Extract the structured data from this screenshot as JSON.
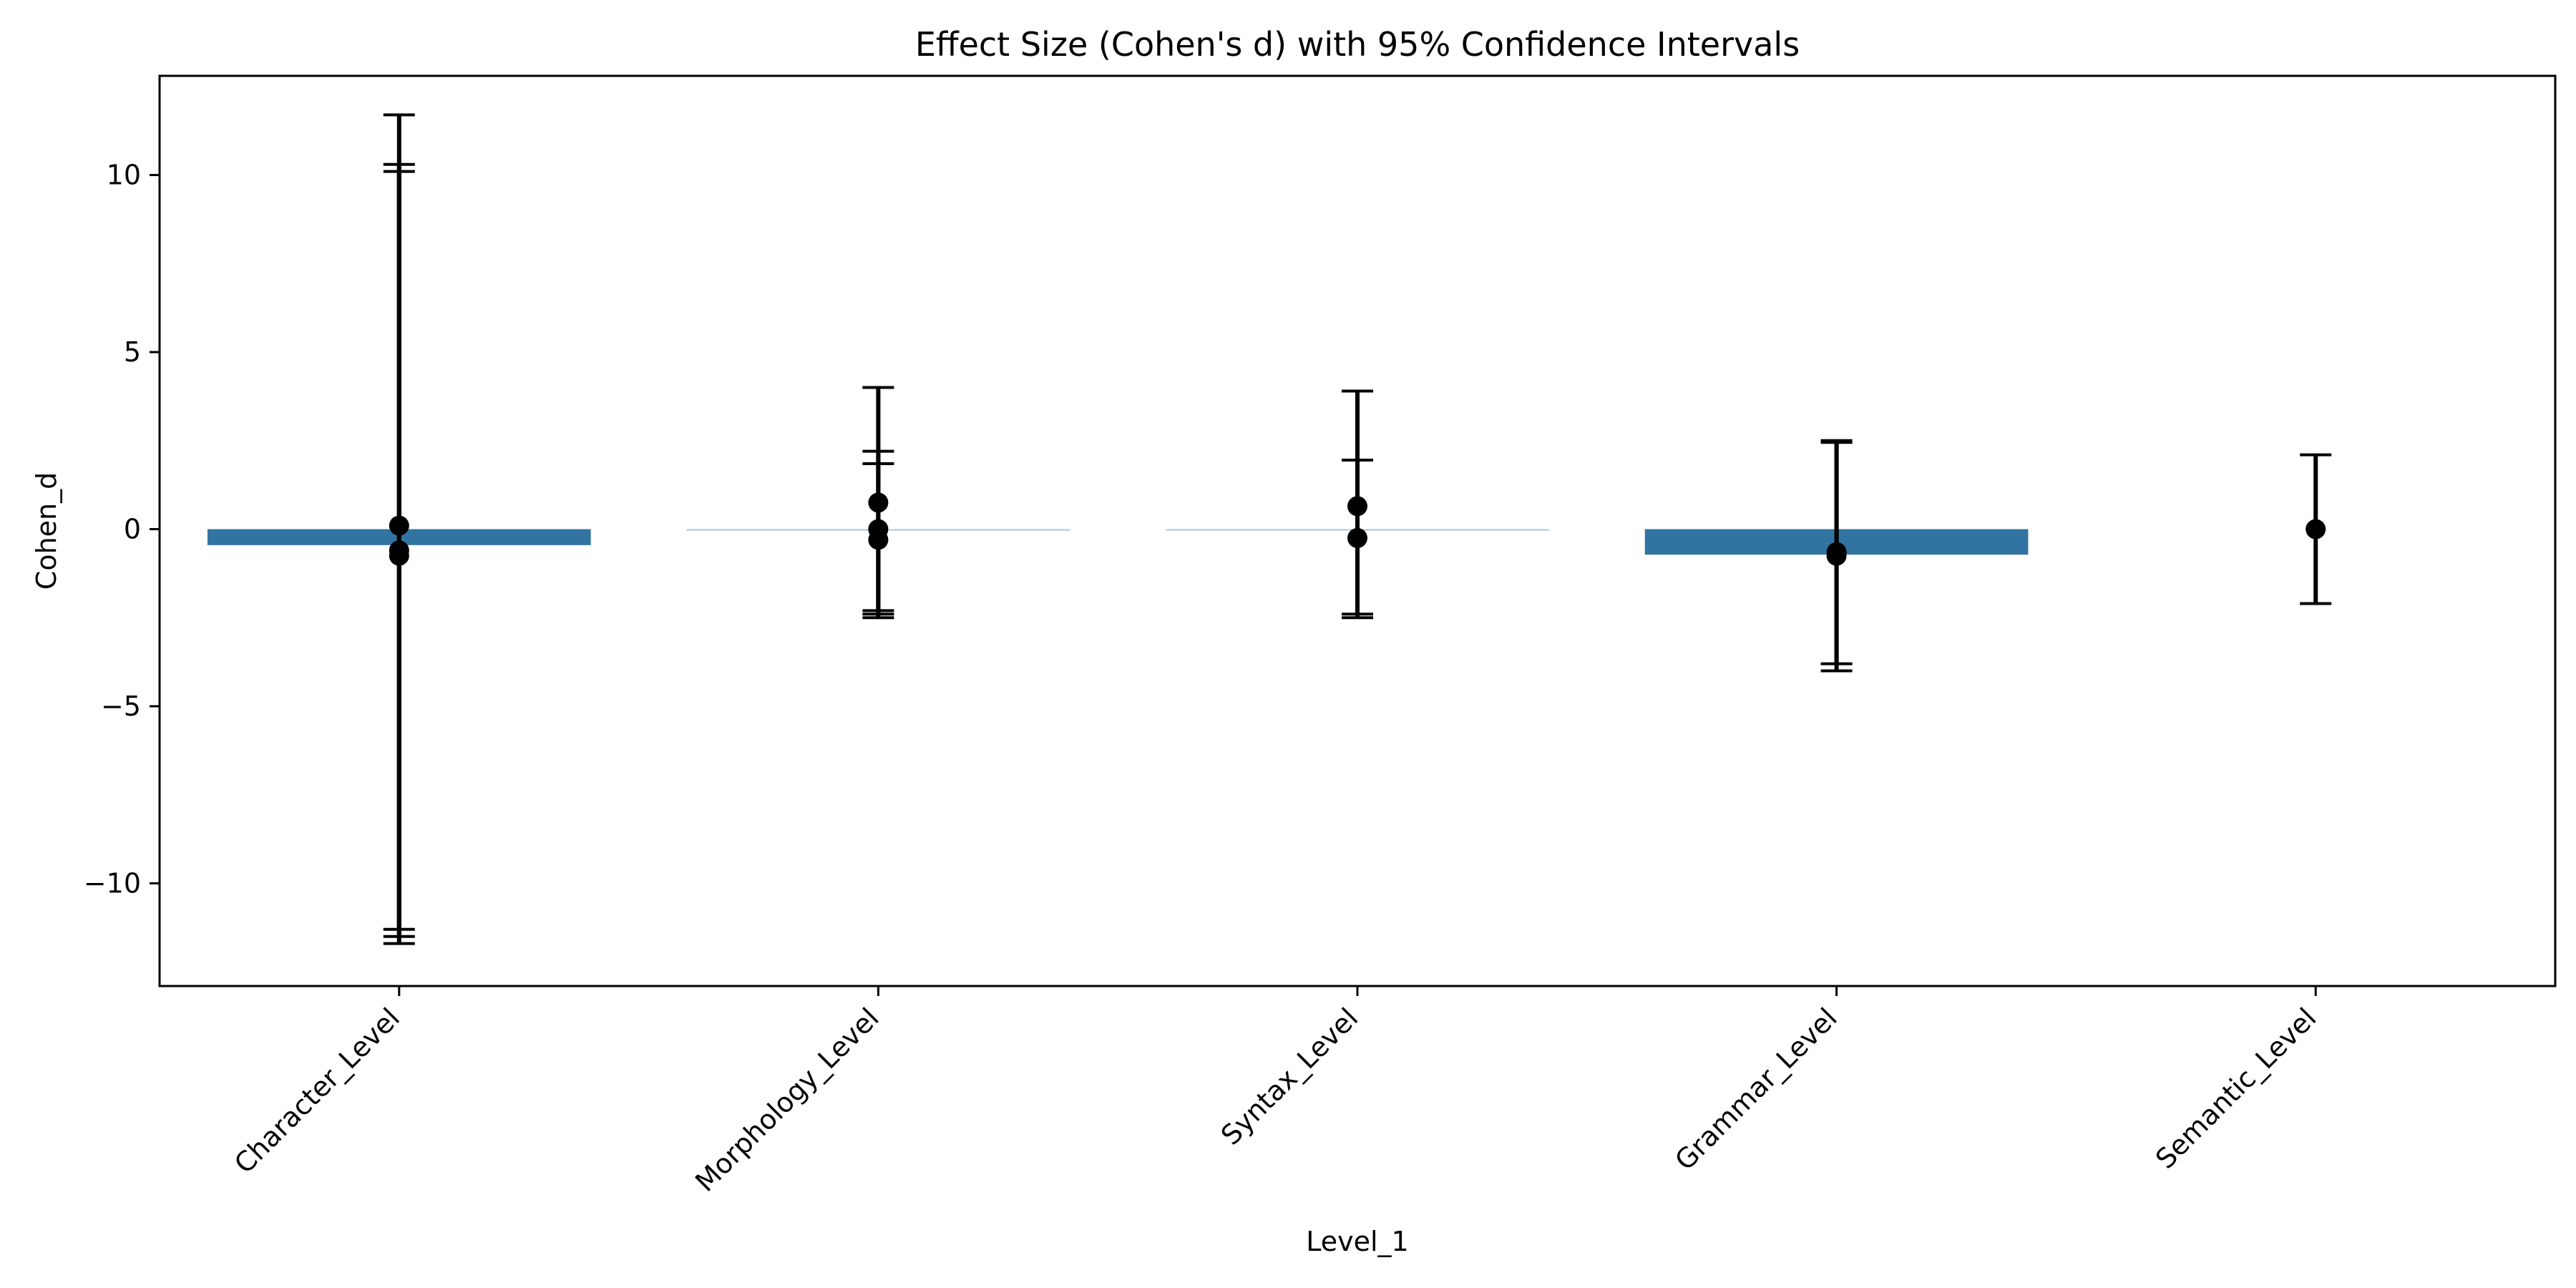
{
  "chart_data": {
    "type": "bar",
    "title": "Effect Size (Cohen's d) with 95% Confidence Intervals",
    "xlabel": "Level_1",
    "ylabel": "Cohen_d",
    "ylim": [
      -12.9,
      12.8
    ],
    "yticks": [
      -10,
      -5,
      0,
      5,
      10
    ],
    "grid": false,
    "bar_color": "#3274a1",
    "bar_color_light": "#a9c5dc",
    "errorbar_color": "#000000",
    "categories": [
      "Character_Level",
      "Morphology_Level",
      "Syntax_Level",
      "Grammar_Level",
      "Semantic_Level"
    ],
    "bars": [
      {
        "category": "Character_Level",
        "value": -0.45,
        "style": "solid"
      },
      {
        "category": "Morphology_Level",
        "value": -0.02,
        "style": "light"
      },
      {
        "category": "Syntax_Level",
        "value": -0.02,
        "style": "light"
      },
      {
        "category": "Grammar_Level",
        "value": -0.72,
        "style": "solid"
      },
      {
        "category": "Semantic_Level",
        "value": 0.0,
        "style": "none"
      }
    ],
    "points": [
      {
        "category": "Character_Level",
        "d": 0.1,
        "ci_low": -11.5,
        "ci_high": 11.7
      },
      {
        "category": "Character_Level",
        "d": -0.6,
        "ci_low": -11.3,
        "ci_high": 10.1
      },
      {
        "category": "Character_Level",
        "d": -0.75,
        "ci_low": -11.7,
        "ci_high": 10.3
      },
      {
        "category": "Morphology_Level",
        "d": 0.75,
        "ci_low": -2.4,
        "ci_high": 4.0
      },
      {
        "category": "Morphology_Level",
        "d": 0.0,
        "ci_low": -2.3,
        "ci_high": 2.2
      },
      {
        "category": "Morphology_Level",
        "d": -0.3,
        "ci_low": -2.5,
        "ci_high": 1.85
      },
      {
        "category": "Syntax_Level",
        "d": 0.65,
        "ci_low": -2.5,
        "ci_high": 3.9
      },
      {
        "category": "Syntax_Level",
        "d": -0.25,
        "ci_low": -2.4,
        "ci_high": 1.95
      },
      {
        "category": "Grammar_Level",
        "d": -0.65,
        "ci_low": -3.8,
        "ci_high": 2.5
      },
      {
        "category": "Grammar_Level",
        "d": -0.75,
        "ci_low": -4.0,
        "ci_high": 2.45
      },
      {
        "category": "Semantic_Level",
        "d": 0.0,
        "ci_low": -2.1,
        "ci_high": 2.1
      }
    ]
  }
}
